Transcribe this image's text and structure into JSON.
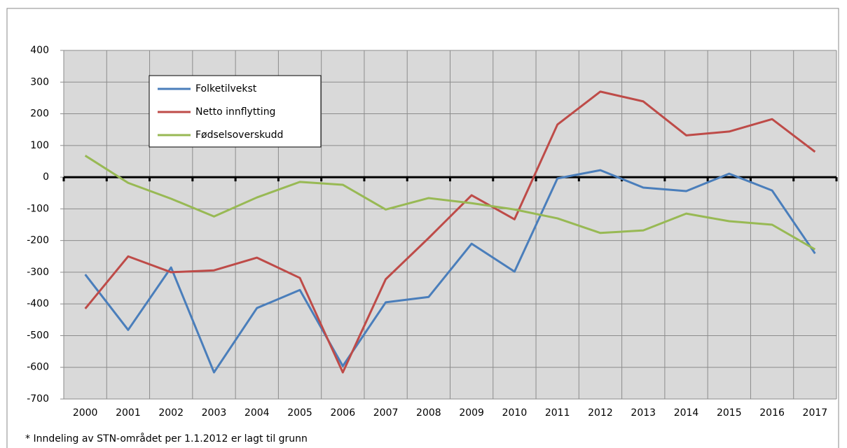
{
  "chart_data": {
    "type": "line",
    "categories": [
      "2000",
      "2001",
      "2002",
      "2003",
      "2004",
      "2005",
      "2006",
      "2007",
      "2008",
      "2009",
      "2010",
      "2011",
      "2012",
      "2013",
      "2014",
      "2015",
      "2016",
      "2017"
    ],
    "series": [
      {
        "name": "Folketilvekst",
        "color": "#4a7ebb",
        "values": [
          -307,
          -482,
          -285,
          -616,
          -413,
          -356,
          -596,
          -395,
          -378,
          -210,
          -298,
          -4,
          22,
          -33,
          -44,
          11,
          -42,
          -241
        ]
      },
      {
        "name": "Netto innflytting",
        "color": "#be4b48",
        "values": [
          -415,
          -250,
          -300,
          -294,
          -254,
          -318,
          -616,
          -322,
          -192,
          -57,
          -133,
          166,
          270,
          239,
          132,
          144,
          183,
          80
        ]
      },
      {
        "name": "Fødselsoverskudd",
        "color": "#98b954",
        "values": [
          68,
          -18,
          -68,
          -124,
          -64,
          -15,
          -24,
          -102,
          -66,
          -82,
          -102,
          -130,
          -176,
          -168,
          -115,
          -139,
          -150,
          -228
        ]
      }
    ],
    "ylim": [
      -700,
      400
    ],
    "yticks": [
      -700,
      -600,
      -500,
      -400,
      -300,
      -200,
      -100,
      0,
      100,
      200,
      300,
      400
    ],
    "grid": true,
    "legend": "upper left",
    "footnote": "* Inndeling av STN-området per 1.1.2012 er lagt til grunn"
  }
}
